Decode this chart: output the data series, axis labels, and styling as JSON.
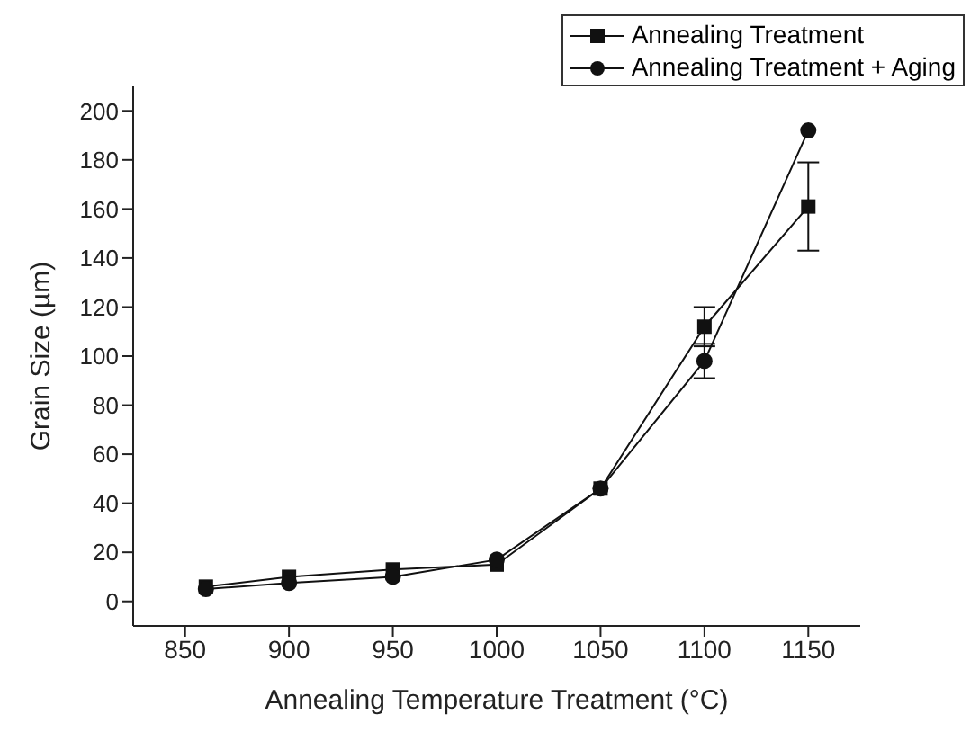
{
  "chart_data": {
    "type": "line",
    "xlabel": "Annealing Temperature Treatment (°C)",
    "ylabel": "Grain Size (µm)",
    "x": [
      860,
      900,
      950,
      1000,
      1050,
      1100,
      1150
    ],
    "xlim": [
      825,
      1175
    ],
    "xticks": [
      850,
      900,
      950,
      1000,
      1050,
      1100,
      1150
    ],
    "ylim": [
      -10,
      210
    ],
    "yticks": [
      0,
      20,
      40,
      60,
      80,
      100,
      120,
      140,
      160,
      180,
      200
    ],
    "grid": false,
    "legend": "top right",
    "line_style": "solid",
    "series": [
      {
        "name": "Annealing Treatment",
        "color": "#111111",
        "marker": "square",
        "values": [
          6,
          10,
          13,
          15,
          46,
          112,
          161
        ],
        "errors": [
          null,
          null,
          null,
          null,
          null,
          8,
          18
        ]
      },
      {
        "name": "Annealing Treatment + Aging",
        "color": "#111111",
        "marker": "circle",
        "values": [
          5,
          7.5,
          10,
          17,
          46,
          98,
          192
        ],
        "errors": [
          null,
          null,
          null,
          null,
          null,
          7,
          null
        ]
      }
    ]
  }
}
